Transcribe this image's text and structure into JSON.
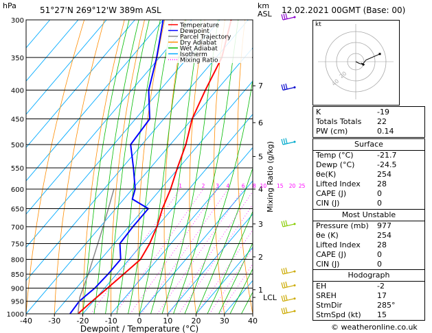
{
  "header": {
    "hpa_label": "hPa",
    "location": "51°27'N  269°12'W  389m  ASL",
    "km_label": "km",
    "asl_label": "ASL",
    "datetime": "12.02.2021  00GMT  (Base: 00)"
  },
  "chart_data": {
    "type": "line",
    "title": "",
    "xlabel": "Dewpoint / Temperature (°C)",
    "ylabel": "hPa",
    "right_axis_label": "Mixing Ratio (g/kg)",
    "x_ticks": [
      -40,
      -30,
      -20,
      -10,
      0,
      10,
      20,
      30,
      40
    ],
    "xlim": [
      -40,
      40
    ],
    "ylim": [
      1000,
      300
    ],
    "y_scale": "log",
    "pressure_levels": [
      300,
      350,
      400,
      450,
      500,
      550,
      600,
      650,
      700,
      750,
      800,
      850,
      900,
      950,
      1000
    ],
    "km_ticks": [
      {
        "label": "1",
        "p": 906
      },
      {
        "label": "2",
        "p": 792
      },
      {
        "label": "3",
        "p": 692
      },
      {
        "label": "4",
        "p": 600
      },
      {
        "label": "5",
        "p": 525
      },
      {
        "label": "6",
        "p": 457
      },
      {
        "label": "7",
        "p": 393
      }
    ],
    "lcl": {
      "label": "LCL",
      "p": 935
    },
    "mixing_ratios": [
      "1",
      "2",
      "3",
      "4",
      "6",
      "8",
      "10",
      "15",
      "20",
      "25"
    ],
    "mixing_ratio_values": [
      1,
      2,
      3,
      4,
      6,
      8,
      10,
      15,
      20,
      25
    ],
    "legend": [
      {
        "name": "Temperature",
        "color": "#ff0000",
        "style": "solid"
      },
      {
        "name": "Dewpoint",
        "color": "#0000ff",
        "style": "solid"
      },
      {
        "name": "Parcel Trajectory",
        "color": "#888888",
        "style": "solid"
      },
      {
        "name": "Dry Adiabat",
        "color": "#ff8c00",
        "style": "solid"
      },
      {
        "name": "Wet Adiabat",
        "color": "#00bb00",
        "style": "solid"
      },
      {
        "name": "Isotherm",
        "color": "#00aaff",
        "style": "solid"
      },
      {
        "name": "Mixing Ratio",
        "color": "#ff00ff",
        "style": "dotted"
      }
    ],
    "legend_position": "top-right",
    "series": [
      {
        "name": "Temperature",
        "color": "#ff0000",
        "points": [
          {
            "p": 1000,
            "t": -21.7
          },
          {
            "p": 950,
            "t": -20.5
          },
          {
            "p": 900,
            "t": -19.0
          },
          {
            "p": 850,
            "t": -17.5
          },
          {
            "p": 800,
            "t": -16.0
          },
          {
            "p": 750,
            "t": -17.5
          },
          {
            "p": 700,
            "t": -20.0
          },
          {
            "p": 650,
            "t": -23.5
          },
          {
            "p": 600,
            "t": -26.5
          },
          {
            "p": 550,
            "t": -30.5
          },
          {
            "p": 500,
            "t": -34.5
          },
          {
            "p": 450,
            "t": -40.0
          },
          {
            "p": 400,
            "t": -44.0
          },
          {
            "p": 350,
            "t": -48.0
          },
          {
            "p": 300,
            "t": -56.0
          }
        ]
      },
      {
        "name": "Dewpoint",
        "color": "#0000ff",
        "points": [
          {
            "p": 1000,
            "t": -24.5
          },
          {
            "p": 950,
            "t": -25.0
          },
          {
            "p": 900,
            "t": -23.5
          },
          {
            "p": 850,
            "t": -23.0
          },
          {
            "p": 800,
            "t": -23.0
          },
          {
            "p": 750,
            "t": -28.0
          },
          {
            "p": 700,
            "t": -28.5
          },
          {
            "p": 650,
            "t": -28.5
          },
          {
            "p": 625,
            "t": -37.0
          },
          {
            "p": 600,
            "t": -39.0
          },
          {
            "p": 550,
            "t": -46.0
          },
          {
            "p": 500,
            "t": -54.0
          },
          {
            "p": 450,
            "t": -55.0
          },
          {
            "p": 400,
            "t": -64.0
          },
          {
            "p": 350,
            "t": -71.0
          },
          {
            "p": 300,
            "t": -80.0
          }
        ]
      },
      {
        "name": "Parcel Trajectory",
        "color": "#888888",
        "points": [
          {
            "p": 1000,
            "t": -21.7
          },
          {
            "p": 935,
            "t": -26.0
          },
          {
            "p": 850,
            "t": -30.0
          },
          {
            "p": 700,
            "t": -39.0
          },
          {
            "p": 600,
            "t": -46.5
          }
        ]
      }
    ],
    "wind_barbs": [
      {
        "p": 1000,
        "color": "#ccaa00"
      },
      {
        "p": 950,
        "color": "#ccaa00"
      },
      {
        "p": 900,
        "color": "#ccaa00"
      },
      {
        "p": 850,
        "color": "#ccaa00"
      },
      {
        "p": 700,
        "color": "#88cc00"
      },
      {
        "p": 500,
        "color": "#00aacc"
      },
      {
        "p": 400,
        "color": "#0000cc"
      },
      {
        "p": 300,
        "color": "#8800cc"
      }
    ]
  },
  "hodograph": {
    "unit_label": "kt",
    "ring_labels": [
      "20",
      "40"
    ],
    "points": [
      {
        "u": 0,
        "v": 0
      },
      {
        "u": 4,
        "v": -2
      },
      {
        "u": 8,
        "v": -3
      },
      {
        "u": 12,
        "v": 2
      },
      {
        "u": 28,
        "v": 9
      }
    ],
    "storm_motion_marker": {
      "u": 6,
      "v": -1
    }
  },
  "indices": {
    "rows": [
      {
        "label": "K",
        "value": "-19"
      },
      {
        "label": "Totals Totals",
        "value": "22"
      },
      {
        "label": "PW (cm)",
        "value": "0.14"
      }
    ]
  },
  "surface": {
    "title": "Surface",
    "rows": [
      {
        "label": "Temp (°C)",
        "value": "-21.7"
      },
      {
        "label": "Dewp (°C)",
        "value": "-24.5"
      },
      {
        "label": "θe(K)",
        "value": "254"
      },
      {
        "label": "Lifted Index",
        "value": "28"
      },
      {
        "label": "CAPE (J)",
        "value": "0"
      },
      {
        "label": "CIN (J)",
        "value": "0"
      }
    ]
  },
  "most_unstable": {
    "title": "Most Unstable",
    "rows": [
      {
        "label": "Pressure (mb)",
        "value": "977"
      },
      {
        "label": "θe (K)",
        "value": "254"
      },
      {
        "label": "Lifted Index",
        "value": "28"
      },
      {
        "label": "CAPE (J)",
        "value": "0"
      },
      {
        "label": "CIN (J)",
        "value": "0"
      }
    ]
  },
  "hodograph_table": {
    "title": "Hodograph",
    "rows": [
      {
        "label": "EH",
        "value": "-2"
      },
      {
        "label": "SREH",
        "value": "17"
      },
      {
        "label": "StmDir",
        "value": "285°"
      },
      {
        "label": "StmSpd (kt)",
        "value": "15"
      }
    ]
  },
  "footer": {
    "copyright": "© weatheronline.co.uk"
  }
}
